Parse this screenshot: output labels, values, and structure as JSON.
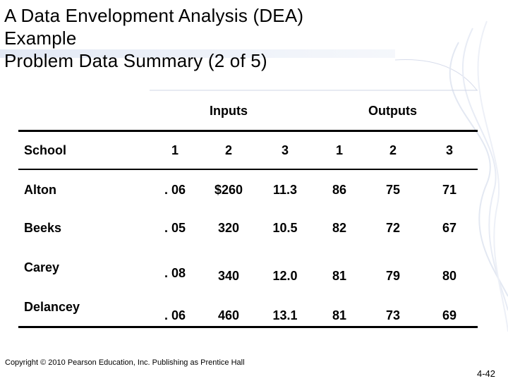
{
  "slide": {
    "title_line1": "A Data Envelopment Analysis (DEA)",
    "title_line2": "Example",
    "title_line3": "Problem Data Summary (2 of 5)"
  },
  "table": {
    "group_inputs": "Inputs",
    "group_outputs": "Outputs",
    "header": [
      "School",
      "1",
      "2",
      "3",
      "1",
      "2",
      "3"
    ],
    "rows": [
      [
        "Alton",
        ". 06",
        "$260",
        "11.3",
        "86",
        "75",
        "71"
      ],
      [
        "Beeks",
        ". 05",
        "320",
        "10.5",
        "82",
        "72",
        "67"
      ],
      [
        "Carey",
        ". 08",
        "340",
        "12.0",
        "81",
        "79",
        "80"
      ],
      [
        "Delancey",
        ". 06",
        "460",
        "13.1",
        "81",
        "73",
        "69"
      ]
    ]
  },
  "footer": {
    "copyright": "Copyright © 2010 Pearson Education, Inc. Publishing as Prentice Hall",
    "page_number": "4-42"
  }
}
